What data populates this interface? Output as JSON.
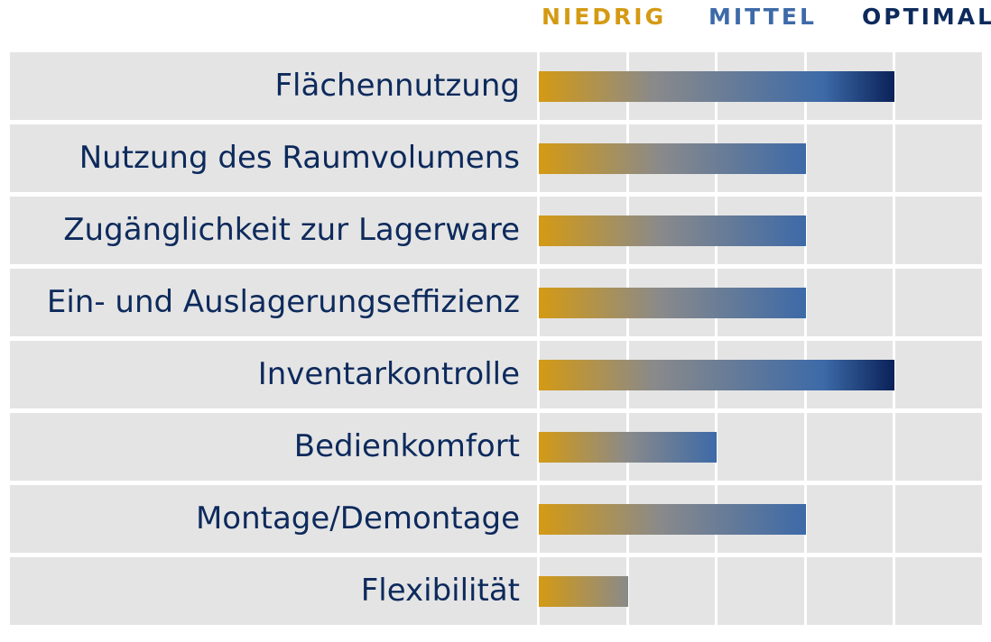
{
  "chart_data": {
    "type": "bar",
    "orientation": "horizontal",
    "legend": {
      "position": "top-right",
      "levels": [
        {
          "label": "NIEDRIG",
          "color": "#d49a13"
        },
        {
          "label": "MITTEL",
          "color": "#3d6aa8"
        },
        {
          "label": "OPTIMAL",
          "color": "#0d2a5c"
        }
      ]
    },
    "categories": [
      "Flächennutzung",
      "Nutzung des Raumvolumens",
      "Zugänglichkeit zur Lagerware",
      "Ein- und Auslagerungseffizienz",
      "Inventarkontrolle",
      "Bedienkomfort",
      "Montage/Demontage",
      "Flexibilität"
    ],
    "values": [
      4,
      3,
      3,
      3,
      4,
      2,
      3,
      1
    ],
    "xlim": [
      0,
      5
    ],
    "grid": true,
    "colors": {
      "low": "#d49a13",
      "mid": "#8a8a8a",
      "high": "#3d6aa8",
      "optimal": "#0a2158",
      "row_background": "#e4e4e4",
      "label_text": "#0d2a5c"
    }
  }
}
